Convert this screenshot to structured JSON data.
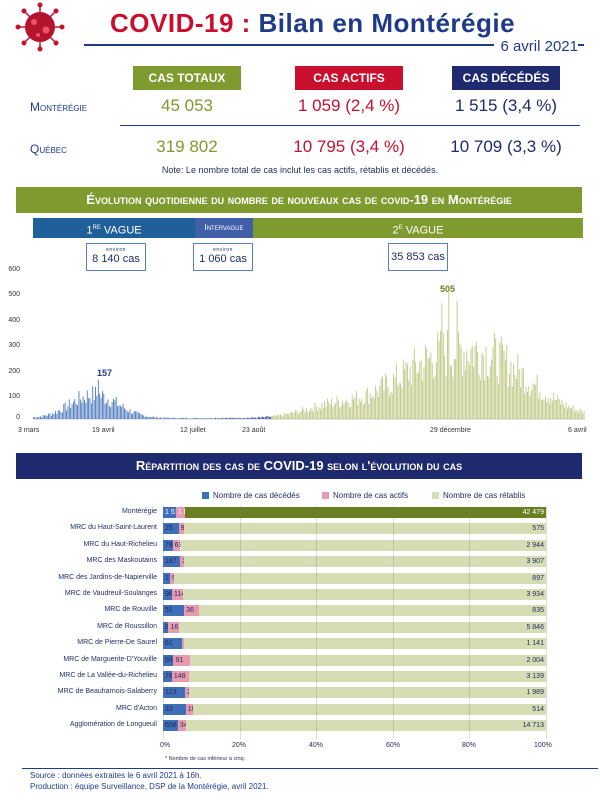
{
  "header": {
    "title_main": "COVID-19 : ",
    "title_sub": "Bilan en Montérégie",
    "date": "6 avril 2021"
  },
  "colors": {
    "green": "#7f9a2e",
    "red": "#c8102e",
    "navy": "#1f2a6e",
    "blue_bar": "#3f6fb8",
    "pink_bar": "#e79ab0",
    "sage": "#d6dcb4"
  },
  "summary": {
    "headers": [
      "Cas totaux",
      "Cas actifs",
      "Cas décédés"
    ],
    "rows": [
      {
        "label": "Montérégie",
        "values": [
          "45 053",
          "1 059 (2,4 %)",
          "1 515 (3,4 %)"
        ]
      },
      {
        "label": "Québec",
        "values": [
          "319 802",
          "10 795 (3,4 %)",
          "10 709 (3,3 %)"
        ]
      }
    ],
    "note": "Note: Le nombre total de cas inclut les cas actifs, rétablis et décédés."
  },
  "evolution": {
    "banner": "Évolution quotidienne du nombre de nouveaux cas de covid-19 en Montérégie",
    "waves": [
      {
        "label": "1re vague",
        "approx": "environ",
        "value": "8 140 cas"
      },
      {
        "label": "Intervague",
        "approx": "environ",
        "value": "1 060 cas"
      },
      {
        "label": "2e vague",
        "approx": "",
        "value": "35 853 cas"
      }
    ],
    "peaks": [
      "157",
      "505"
    ]
  },
  "chart_data": [
    {
      "type": "bar",
      "title": "Évolution quotidienne du nombre de nouveaux cas de covid-19 en Montérégie",
      "ylim": [
        0,
        600
      ],
      "yticks": [
        "600",
        "500",
        "400",
        "300",
        "200",
        "100",
        "0"
      ],
      "xticks": [
        "3 mars",
        "19 avril",
        "12 juillet",
        "23 août",
        "29 décembre",
        "6 avril"
      ],
      "x_start": "2020-03-03",
      "x_end": "2021-04-06",
      "series": [
        {
          "name": "1re vague",
          "range": [
            "2020-03-03",
            "2020-07-11"
          ],
          "color": "#3f6fb8"
        },
        {
          "name": "Intervague",
          "range": [
            "2020-07-12",
            "2020-08-22"
          ],
          "color": "#1f3a8a"
        },
        {
          "name": "2e vague",
          "range": [
            "2020-08-23",
            "2021-04-06"
          ],
          "color": "#b9c47a"
        }
      ],
      "annotations": [
        {
          "date": "2020-04-19",
          "value": 157
        },
        {
          "date": "2020-12-29",
          "value": 505
        }
      ]
    },
    {
      "type": "bar",
      "title": "Répartition des cas de COVID-19 selon l'évolution du cas",
      "legend": [
        "Nombre de cas décédés",
        "Nombre de cas actifs",
        "Nombre de cas rétablis"
      ],
      "xticks": [
        "0%",
        "20%",
        "40%",
        "60%",
        "80%",
        "100%"
      ],
      "categories": [
        "Montérégie",
        "MRC du Haut-Saint-Laurent",
        "MRC du Haut-Richelieu",
        "MRC des Maskoutains",
        "MRC des Jardins-de-Napierville",
        "MRC de Vaudreuil-Soulanges",
        "MRC de Rouville",
        "MRC de Roussillon",
        "MRC de Pierre-De Saurel",
        "MRC de Marguerite-D'Youville",
        "MRC de La Vallée-du-Richelieu",
        "MRC de Beauharnois-Salaberry",
        "MRC d'Acton",
        "Agglomération de Longueuil"
      ],
      "series": [
        {
          "name": "Nombre de cas décédés",
          "values": [
            "1 515",
            "25",
            "78",
            "187",
            "17",
            "98",
            "51",
            "87",
            "61",
            "59",
            "78",
            "123",
            "33",
            "608"
          ]
        },
        {
          "name": "Nombre de cas actifs",
          "values": [
            "1 059",
            "9",
            "63",
            "35",
            "9",
            "114",
            "36",
            "161",
            "6",
            "91",
            "148",
            "21",
            "10",
            "348"
          ]
        },
        {
          "name": "Nombre de cas rétablis",
          "values": [
            "42 479",
            "575",
            "2 944",
            "3 907",
            "897",
            "3 934",
            "835",
            "5 846",
            "1 141",
            "2 004",
            "3 139",
            "1 989",
            "514",
            "14 713"
          ]
        }
      ],
      "footnote": "* Nombre de cas inférieur à cinq."
    }
  ],
  "repartition": {
    "banner": "Répartition des cas de COVID-19 selon l'évolution du cas"
  },
  "footer": {
    "source": "Source : données extraites le 6 avril 2021 à 16h.",
    "production": "Production : équipe Surveillance, DSP de la Montérégie, avril 2021."
  }
}
